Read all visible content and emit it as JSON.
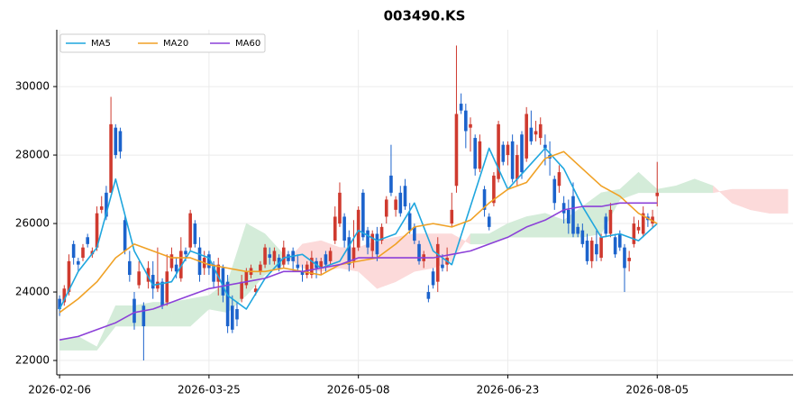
{
  "chart_data": {
    "type": "candlestick",
    "title": "003490.KS",
    "up_color": "#cf3a2f",
    "down_color": "#1c63cc",
    "grid": true,
    "legend": "upper left",
    "xlim": [
      -0.6,
      157.1
    ],
    "ylim": [
      21580,
      31660
    ],
    "yticks": [
      22000,
      24000,
      26000,
      28000,
      30000
    ],
    "xticks": [
      {
        "value": 0,
        "label": "2026-02-06"
      },
      {
        "value": 32,
        "label": "2026-03-25"
      },
      {
        "value": 64,
        "label": "2026-05-08"
      },
      {
        "value": 96,
        "label": "2026-06-23"
      },
      {
        "value": 128,
        "label": "2026-08-05"
      }
    ],
    "ohlc": [
      [
        23800,
        23900,
        23300,
        23500
      ],
      [
        23700,
        24200,
        23600,
        24100
      ],
      [
        24000,
        25100,
        23900,
        24900
      ],
      [
        25400,
        25500,
        24800,
        25000
      ],
      [
        24900,
        25000,
        24600,
        24800
      ],
      [
        25000,
        25400,
        24900,
        25300
      ],
      [
        25600,
        25700,
        25300,
        25400
      ],
      [
        25100,
        25300,
        25000,
        25200
      ],
      [
        25300,
        26500,
        25200,
        26300
      ],
      [
        26400,
        26800,
        26300,
        26500
      ],
      [
        26900,
        27100,
        26100,
        26200
      ],
      [
        26900,
        29700,
        26900,
        28900
      ],
      [
        28800,
        28900,
        27900,
        28000
      ],
      [
        28700,
        28800,
        27900,
        28100
      ],
      [
        26100,
        26200,
        25100,
        25200
      ],
      [
        24900,
        25200,
        24300,
        24500
      ],
      [
        23800,
        24000,
        22900,
        23100
      ],
      [
        24200,
        24900,
        24100,
        24600
      ],
      [
        23600,
        23700,
        22000,
        23000
      ],
      [
        24300,
        24900,
        24100,
        24700
      ],
      [
        24500,
        24900,
        23800,
        24100
      ],
      [
        24100,
        25300,
        24000,
        24300
      ],
      [
        24300,
        24400,
        23500,
        23600
      ],
      [
        23700,
        25100,
        23600,
        24600
      ],
      [
        24700,
        25300,
        24600,
        25100
      ],
      [
        24800,
        25000,
        24400,
        24600
      ],
      [
        24400,
        25600,
        24300,
        25200
      ],
      [
        25200,
        25300,
        24900,
        25100
      ],
      [
        25300,
        26400,
        25200,
        26300
      ],
      [
        26000,
        26100,
        25300,
        25400
      ],
      [
        25300,
        25600,
        24300,
        24500
      ],
      [
        24700,
        25200,
        24500,
        25000
      ],
      [
        25100,
        25200,
        24500,
        24700
      ],
      [
        24800,
        24900,
        24100,
        24300
      ],
      [
        24300,
        25000,
        23900,
        24800
      ],
      [
        24700,
        24800,
        23700,
        23900
      ],
      [
        24300,
        24500,
        22800,
        23000
      ],
      [
        23600,
        23900,
        22800,
        22900
      ],
      [
        23500,
        23700,
        23000,
        23200
      ],
      [
        23800,
        24500,
        23700,
        24300
      ],
      [
        24200,
        24700,
        24100,
        24600
      ],
      [
        24500,
        24800,
        24400,
        24700
      ],
      [
        24000,
        24200,
        23900,
        24100
      ],
      [
        24600,
        24900,
        24500,
        24800
      ],
      [
        24800,
        25400,
        24700,
        25300
      ],
      [
        25100,
        25300,
        24800,
        25000
      ],
      [
        24900,
        25300,
        24800,
        25200
      ],
      [
        25000,
        25100,
        24600,
        24700
      ],
      [
        24800,
        25500,
        24700,
        25300
      ],
      [
        25100,
        25200,
        24800,
        24900
      ],
      [
        25200,
        25300,
        24600,
        24900
      ],
      [
        24800,
        25100,
        24600,
        24700
      ],
      [
        24600,
        24800,
        24300,
        24500
      ],
      [
        24500,
        24900,
        24400,
        24800
      ],
      [
        24500,
        25200,
        24400,
        25000
      ],
      [
        24900,
        25000,
        24400,
        24700
      ],
      [
        24700,
        25000,
        24500,
        24900
      ],
      [
        25100,
        25200,
        24600,
        24800
      ],
      [
        24900,
        25300,
        24800,
        25200
      ],
      [
        25500,
        26500,
        25400,
        26200
      ],
      [
        26000,
        27200,
        25900,
        26900
      ],
      [
        26200,
        26300,
        25300,
        25500
      ],
      [
        25600,
        25800,
        24600,
        24800
      ],
      [
        24900,
        26100,
        24700,
        25300
      ],
      [
        25300,
        26500,
        25200,
        26400
      ],
      [
        26900,
        27000,
        25500,
        25600
      ],
      [
        25800,
        25900,
        25100,
        25300
      ],
      [
        25200,
        25800,
        25000,
        25700
      ],
      [
        25700,
        25900,
        24900,
        25100
      ],
      [
        25500,
        26000,
        25400,
        25900
      ],
      [
        26200,
        26800,
        26000,
        26700
      ],
      [
        27400,
        28300,
        26800,
        26900
      ],
      [
        26400,
        26800,
        26200,
        26700
      ],
      [
        26900,
        27100,
        26200,
        26300
      ],
      [
        27100,
        27300,
        26400,
        26500
      ],
      [
        26300,
        26600,
        25700,
        25800
      ],
      [
        25900,
        26000,
        25400,
        25500
      ],
      [
        25400,
        25500,
        24800,
        24900
      ],
      [
        24900,
        25200,
        24700,
        25100
      ],
      [
        24000,
        24200,
        23700,
        23800
      ],
      [
        24600,
        24700,
        24100,
        24200
      ],
      [
        24300,
        25600,
        24000,
        25400
      ],
      [
        24800,
        25100,
        24600,
        24700
      ],
      [
        24800,
        25300,
        24600,
        25000
      ],
      [
        26000,
        26900,
        25900,
        26400
      ],
      [
        27100,
        31200,
        26900,
        29200
      ],
      [
        29500,
        29800,
        29200,
        29300
      ],
      [
        29300,
        29500,
        28200,
        28700
      ],
      [
        28800,
        29100,
        28100,
        28900
      ],
      [
        28500,
        28600,
        27400,
        27600
      ],
      [
        27600,
        28600,
        27500,
        28400
      ],
      [
        27000,
        27100,
        26200,
        26400
      ],
      [
        26200,
        26300,
        25800,
        25900
      ],
      [
        26600,
        27500,
        26500,
        27400
      ],
      [
        27300,
        29000,
        27200,
        28900
      ],
      [
        28300,
        28400,
        27700,
        27800
      ],
      [
        28000,
        28400,
        27700,
        28300
      ],
      [
        28400,
        28600,
        27200,
        27300
      ],
      [
        27300,
        28300,
        27100,
        28000
      ],
      [
        28600,
        28700,
        27300,
        27500
      ],
      [
        27900,
        29400,
        27800,
        29200
      ],
      [
        28800,
        29300,
        28300,
        28400
      ],
      [
        28600,
        29000,
        28400,
        28700
      ],
      [
        28500,
        29100,
        28300,
        28900
      ],
      [
        28300,
        28600,
        27700,
        28200
      ],
      [
        28000,
        28400,
        27400,
        27900
      ],
      [
        27300,
        27400,
        26400,
        26600
      ],
      [
        27100,
        27700,
        26900,
        27500
      ],
      [
        26600,
        26800,
        26000,
        26300
      ],
      [
        26400,
        26700,
        25700,
        26000
      ],
      [
        26800,
        27200,
        25600,
        25700
      ],
      [
        25900,
        26000,
        25600,
        25700
      ],
      [
        25800,
        26000,
        25300,
        25400
      ],
      [
        25500,
        25700,
        24800,
        24900
      ],
      [
        24900,
        25600,
        24700,
        25500
      ],
      [
        25400,
        25800,
        24900,
        25100
      ],
      [
        25000,
        25700,
        24900,
        25600
      ],
      [
        26200,
        26300,
        25600,
        25700
      ],
      [
        25700,
        26600,
        25600,
        26400
      ],
      [
        25600,
        25700,
        25000,
        25100
      ],
      [
        25700,
        25800,
        25200,
        25300
      ],
      [
        25300,
        25400,
        24000,
        24700
      ],
      [
        24900,
        25200,
        24600,
        25000
      ],
      [
        25400,
        26200,
        25300,
        26000
      ],
      [
        25800,
        26100,
        25700,
        25900
      ],
      [
        25700,
        26500,
        25600,
        26300
      ],
      [
        26200,
        26300,
        25900,
        26100
      ],
      [
        26000,
        26400,
        25900,
        26200
      ],
      [
        26800,
        27800,
        26500,
        26900
      ]
    ],
    "series": [
      {
        "name": "MA5",
        "color": "#1fa6de",
        "x": [
          0,
          4,
          8,
          12,
          16,
          20,
          24,
          28,
          32,
          36,
          40,
          44,
          48,
          52,
          56,
          60,
          64,
          68,
          72,
          76,
          80,
          84,
          88,
          92,
          96,
          100,
          104,
          108,
          112,
          116,
          120,
          124,
          128
        ],
        "values": [
          23500,
          24600,
          25300,
          27300,
          25200,
          24200,
          24300,
          25200,
          25000,
          23900,
          23500,
          24400,
          25000,
          25100,
          24700,
          24900,
          25800,
          25500,
          25700,
          26600,
          25200,
          24800,
          26500,
          28200,
          27000,
          27600,
          28200,
          27600,
          26500,
          25600,
          25700,
          25500,
          26000
        ]
      },
      {
        "name": "MA20",
        "color": "#f0a125",
        "x": [
          0,
          4,
          8,
          12,
          16,
          20,
          24,
          28,
          32,
          36,
          40,
          44,
          48,
          52,
          56,
          60,
          64,
          68,
          72,
          76,
          80,
          84,
          88,
          92,
          96,
          100,
          104,
          108,
          112,
          116,
          120,
          124,
          128
        ],
        "values": [
          23400,
          23800,
          24300,
          25000,
          25400,
          25200,
          25000,
          25000,
          24800,
          24700,
          24600,
          24600,
          24700,
          24600,
          24500,
          24800,
          24900,
          25000,
          25400,
          25900,
          26000,
          25900,
          26100,
          26600,
          27000,
          27200,
          27900,
          28100,
          27600,
          27100,
          26800,
          26300,
          26000
        ]
      },
      {
        "name": "MA60",
        "color": "#8c40d8",
        "x": [
          0,
          4,
          8,
          12,
          16,
          20,
          24,
          28,
          32,
          36,
          40,
          44,
          48,
          52,
          56,
          60,
          64,
          68,
          72,
          76,
          80,
          84,
          88,
          92,
          96,
          100,
          104,
          108,
          112,
          116,
          120,
          124,
          128
        ],
        "values": [
          22600,
          22700,
          22900,
          23100,
          23400,
          23500,
          23700,
          23900,
          24100,
          24200,
          24300,
          24400,
          24600,
          24600,
          24700,
          24800,
          25000,
          25000,
          25000,
          25000,
          25000,
          25100,
          25200,
          25400,
          25600,
          25900,
          26100,
          26400,
          26500,
          26500,
          26600,
          26600,
          26600
        ]
      }
    ],
    "cloud": {
      "up_color": "#d4ecd9",
      "down_color": "#fcdada",
      "x": [
        0,
        4,
        8,
        12,
        16,
        20,
        24,
        28,
        32,
        36,
        40,
        44,
        48,
        52,
        56,
        60,
        64,
        68,
        72,
        76,
        80,
        84,
        88,
        92,
        96,
        100,
        104,
        108,
        112,
        116,
        120,
        124,
        128,
        132,
        136,
        140,
        144,
        148,
        152,
        156
      ],
      "span_a": [
        22600,
        22700,
        22400,
        23600,
        23600,
        23700,
        23700,
        23800,
        23900,
        24300,
        26000,
        25700,
        25100,
        24700,
        24600,
        24700,
        24600,
        24100,
        24300,
        24600,
        24700,
        24900,
        25700,
        25700,
        26000,
        26200,
        26300,
        26100,
        26500,
        26900,
        27000,
        27500,
        27000,
        27100,
        27300,
        27100,
        26600,
        26400,
        26300,
        26300
      ],
      "span_b": [
        22300,
        22300,
        22300,
        23000,
        23000,
        23000,
        23000,
        23000,
        23500,
        23400,
        23900,
        24500,
        24800,
        25400,
        25500,
        25300,
        25300,
        25500,
        25600,
        25700,
        25700,
        25700,
        25400,
        25400,
        25600,
        25600,
        25600,
        25600,
        25600,
        25700,
        26700,
        26900,
        26900,
        26900,
        26900,
        26900,
        27000,
        27000,
        27000,
        27000
      ]
    }
  }
}
